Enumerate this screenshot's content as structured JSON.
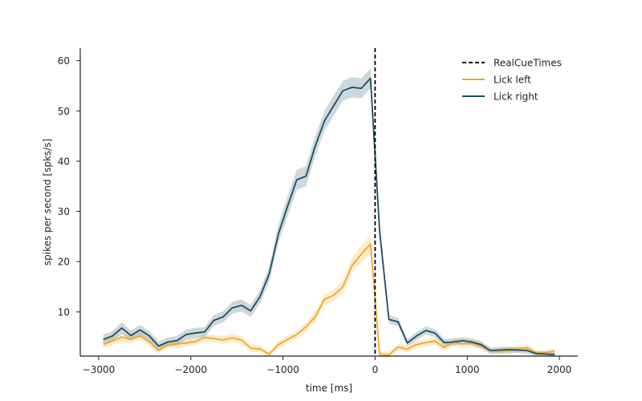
{
  "chart_data": {
    "type": "line",
    "xlabel": "time [ms]",
    "ylabel": "spikes per second [spks/s]",
    "xlim": [
      -3200,
      2200
    ],
    "ylim": [
      1.2,
      62.5
    ],
    "xticks": [
      -3000,
      -2000,
      -1000,
      0,
      1000,
      2000
    ],
    "xtick_labels": [
      "−3000",
      "−2000",
      "−1000",
      "0",
      "1000",
      "2000"
    ],
    "yticks": [
      10,
      20,
      30,
      40,
      50,
      60
    ],
    "ytick_labels": [
      "10",
      "20",
      "30",
      "40",
      "50",
      "60"
    ],
    "grid": false,
    "legend_position": "top-right",
    "vline": {
      "x": 0,
      "name": "RealCueTimes",
      "color": "#000000",
      "style": "dashed"
    },
    "series": [
      {
        "name": "Lick left",
        "color": "#f5a623",
        "x": [
          -2950,
          -2850,
          -2750,
          -2650,
          -2550,
          -2450,
          -2350,
          -2250,
          -2150,
          -2050,
          -1950,
          -1850,
          -1750,
          -1650,
          -1550,
          -1450,
          -1350,
          -1250,
          -1150,
          -1050,
          -950,
          -850,
          -750,
          -650,
          -550,
          -450,
          -350,
          -250,
          -150,
          -50,
          50,
          150,
          250,
          350,
          450,
          550,
          650,
          750,
          850,
          950,
          1050,
          1150,
          1250,
          1350,
          1450,
          1550,
          1650,
          1750,
          1850,
          1950
        ],
        "y": [
          3.5,
          4.2,
          5.0,
          4.5,
          5.2,
          4.0,
          2.3,
          3.5,
          3.6,
          3.8,
          4.1,
          4.9,
          4.7,
          4.4,
          4.8,
          4.4,
          2.8,
          2.6,
          1.6,
          3.5,
          4.5,
          5.5,
          7.0,
          9.0,
          12.5,
          13.3,
          15.0,
          19.2,
          21.5,
          23.5,
          1.5,
          1.4,
          3.0,
          2.6,
          3.5,
          3.9,
          4.2,
          2.9,
          4.0,
          3.6,
          3.8,
          3.2,
          2.3,
          2.2,
          2.2,
          2.6,
          2.9,
          1.8,
          1.9,
          2.2
        ],
        "band": [
          0.8,
          0.8,
          0.8,
          0.8,
          0.8,
          0.8,
          0.7,
          0.7,
          0.7,
          0.7,
          0.7,
          0.7,
          0.7,
          0.8,
          0.8,
          0.8,
          0.7,
          0.7,
          0.6,
          0.7,
          0.8,
          0.8,
          0.9,
          1.0,
          1.1,
          1.2,
          1.3,
          1.5,
          1.7,
          1.9,
          0.6,
          0.6,
          0.7,
          0.7,
          0.7,
          0.7,
          0.7,
          0.7,
          0.7,
          0.7,
          0.7,
          0.7,
          0.6,
          0.6,
          0.6,
          0.6,
          0.6,
          0.5,
          0.5,
          0.5
        ]
      },
      {
        "name": "Lick right",
        "color": "#1d4e63",
        "x": [
          -2950,
          -2850,
          -2750,
          -2650,
          -2550,
          -2450,
          -2350,
          -2250,
          -2150,
          -2050,
          -1950,
          -1850,
          -1750,
          -1650,
          -1550,
          -1450,
          -1350,
          -1250,
          -1150,
          -1050,
          -950,
          -850,
          -750,
          -650,
          -550,
          -450,
          -350,
          -250,
          -150,
          -50,
          50,
          150,
          250,
          350,
          450,
          550,
          650,
          750,
          850,
          950,
          1050,
          1150,
          1250,
          1350,
          1450,
          1550,
          1650,
          1750,
          1850,
          1950
        ],
        "y": [
          4.5,
          5.2,
          6.8,
          5.3,
          6.4,
          5.2,
          3.2,
          4.0,
          4.3,
          5.5,
          5.8,
          6.0,
          8.3,
          9.0,
          10.8,
          11.3,
          10.2,
          13.0,
          17.5,
          25.5,
          31.0,
          36.3,
          37.0,
          43.0,
          48.0,
          51.0,
          54.0,
          54.7,
          54.5,
          56.5,
          26.0,
          8.5,
          8.0,
          3.8,
          5.2,
          6.3,
          5.8,
          3.9,
          4.0,
          4.3,
          4.0,
          3.5,
          2.3,
          2.4,
          2.5,
          2.4,
          2.3,
          1.7,
          1.6,
          1.5
        ],
        "band": [
          1.0,
          1.0,
          1.1,
          1.0,
          1.0,
          1.0,
          0.9,
          0.9,
          0.9,
          1.0,
          1.0,
          1.0,
          1.1,
          1.1,
          1.2,
          1.2,
          1.2,
          1.3,
          1.5,
          1.8,
          2.0,
          2.0,
          2.0,
          2.0,
          2.0,
          2.0,
          2.0,
          2.0,
          2.0,
          2.0,
          1.6,
          0.9,
          0.8,
          0.7,
          0.8,
          0.8,
          0.8,
          0.7,
          0.7,
          0.7,
          0.7,
          0.7,
          0.6,
          0.6,
          0.6,
          0.6,
          0.6,
          0.5,
          0.5,
          0.5
        ]
      }
    ]
  }
}
